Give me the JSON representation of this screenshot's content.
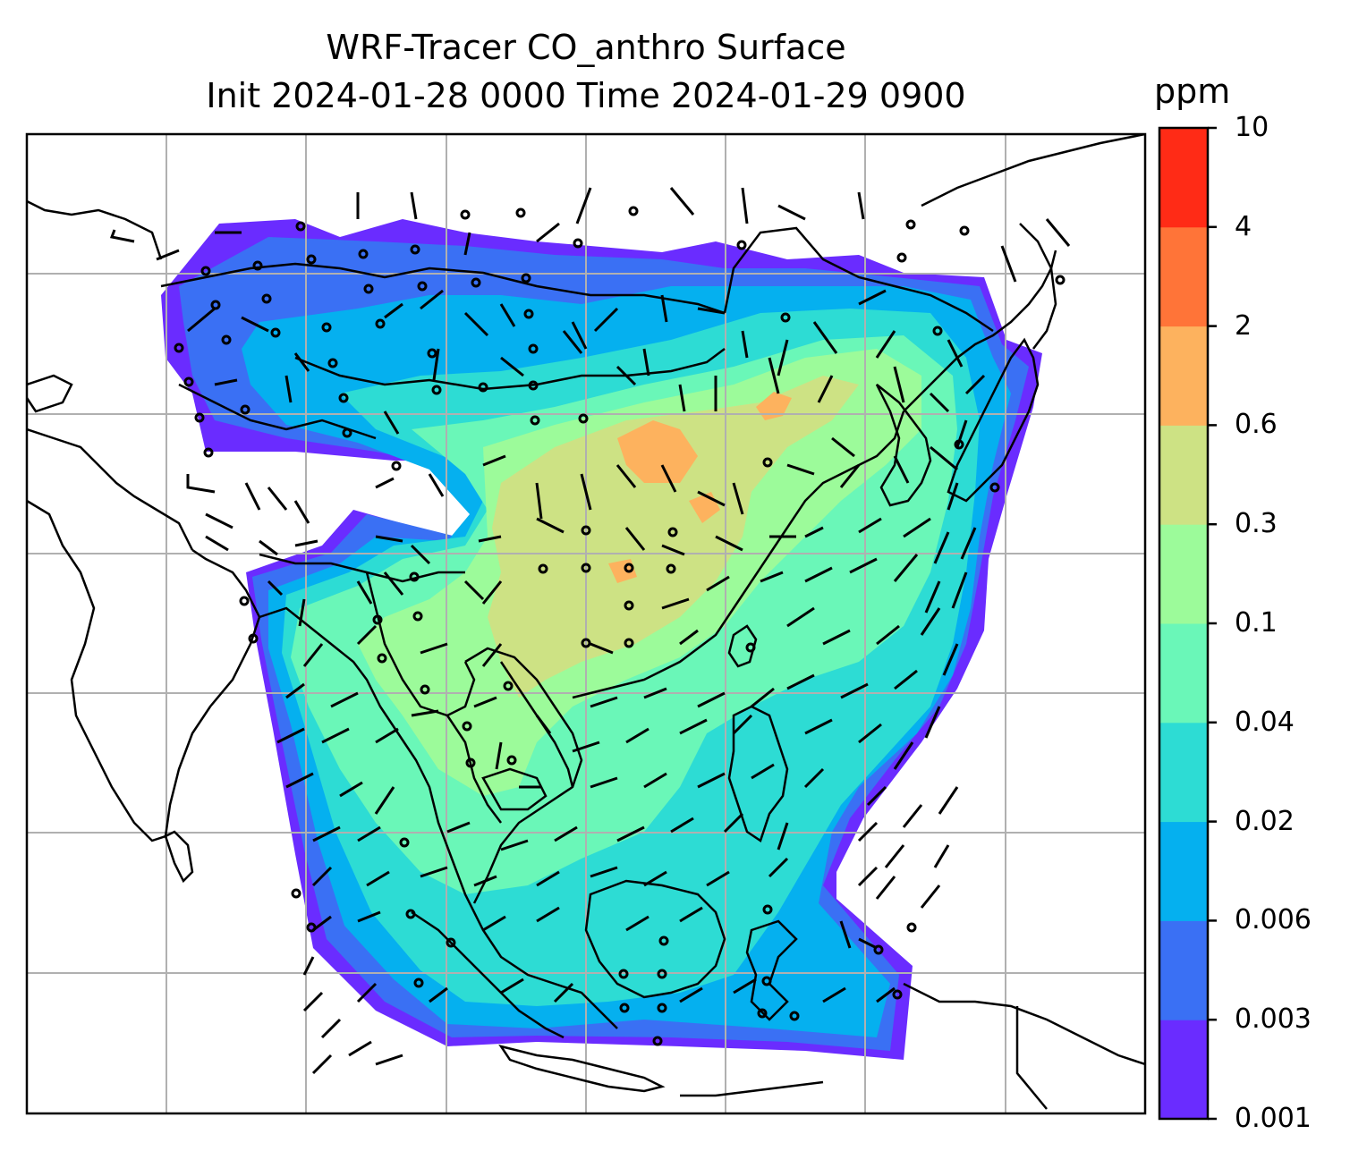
{
  "title": {
    "line1": "WRF-Tracer CO_anthro Surface",
    "line2": "Init 2024-01-28 0000 Time 2024-01-29 0900"
  },
  "colorbar": {
    "unit": "ppm",
    "levels": [
      "0.001",
      "0.003",
      "0.006",
      "0.02",
      "0.04",
      "0.1",
      "0.3",
      "0.6",
      "2",
      "4",
      "10"
    ],
    "colors": [
      "#6a2cff",
      "#3a70f4",
      "#05b0ef",
      "#2ddcd4",
      "#6af7b8",
      "#9cfb9a",
      "#cde284",
      "#fdb25e",
      "#ff7438",
      "#ff2b16"
    ]
  },
  "colors": {
    "coastline": "#000000",
    "grid": "#b0b0b0",
    "wind_barb": "#000000"
  }
}
